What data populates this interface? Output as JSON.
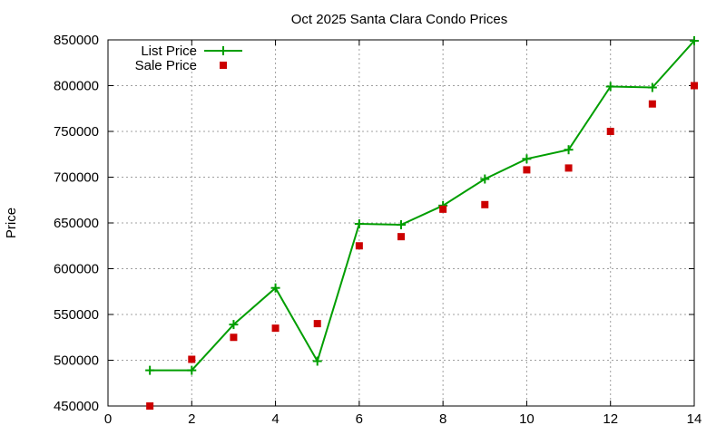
{
  "chart_data": {
    "type": "line",
    "title": "Oct 2025 Santa Clara Condo Prices",
    "xlabel": "",
    "ylabel": "Price",
    "xlim": [
      0,
      14
    ],
    "ylim": [
      450000,
      850000
    ],
    "x_ticks": [
      0,
      2,
      4,
      6,
      8,
      10,
      12,
      14
    ],
    "y_ticks": [
      450000,
      500000,
      550000,
      600000,
      650000,
      700000,
      750000,
      800000,
      850000
    ],
    "grid": true,
    "legend_position": "top-left",
    "series": [
      {
        "name": "List Price",
        "style": "line-with-plus-markers",
        "color": "#009e00",
        "x": [
          1,
          2,
          3,
          4,
          5,
          6,
          7,
          8,
          9,
          10,
          11,
          12,
          13,
          14
        ],
        "values": [
          489000,
          489000,
          539000,
          579000,
          499000,
          649000,
          648000,
          669000,
          698000,
          720000,
          730000,
          799000,
          798000,
          849000
        ]
      },
      {
        "name": "Sale Price",
        "style": "square-markers",
        "color": "#cc0000",
        "x": [
          1,
          2,
          3,
          4,
          5,
          6,
          7,
          8,
          9,
          10,
          11,
          12,
          13,
          14
        ],
        "values": [
          450000,
          501000,
          525000,
          535000,
          540000,
          625000,
          635000,
          665000,
          670000,
          708000,
          710000,
          750000,
          780000,
          800000
        ]
      }
    ]
  }
}
